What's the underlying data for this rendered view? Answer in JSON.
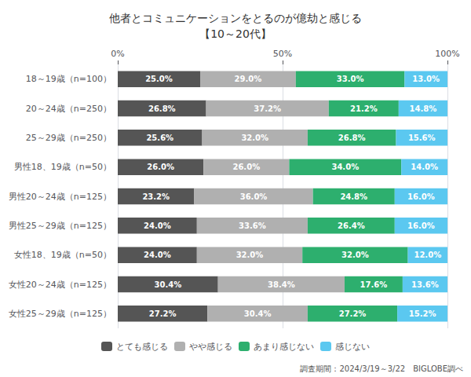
{
  "chart_data": {
    "type": "bar",
    "title": "他者とコミュニケーションをとるのが億劫と感じる\n【10～20代】",
    "orientation": "horizontal",
    "stacked": true,
    "data_labels": true,
    "grid": true,
    "legend": "bottom",
    "categories": [
      "18～19歳（n=100）",
      "20～24歳（n=250）",
      "25～29歳（n=250）",
      "男性18、19歳（n=50）",
      "男性20～24歳（n=125）",
      "男性25～29歳（n=125）",
      "女性18、19歳（n=50）",
      "女性20～24歳（n=125）",
      "女性25～29歳（n=125）"
    ],
    "series": [
      {
        "name": "とても感じる",
        "color": "#555555",
        "values": [
          25.0,
          26.8,
          25.6,
          26.0,
          23.2,
          24.0,
          24.0,
          30.4,
          27.2
        ],
        "value_labels": [
          "25.0%",
          "26.8%",
          "25.6%",
          "26.0%",
          "23.2%",
          "24.0%",
          "24.0%",
          "30.4%",
          "27.2%"
        ]
      },
      {
        "name": "やや感じる",
        "color": "#b0b0b0",
        "values": [
          29.0,
          37.2,
          32.0,
          26.0,
          36.0,
          33.6,
          32.0,
          38.4,
          30.4
        ],
        "value_labels": [
          "29.0%",
          "37.2%",
          "32.0%",
          "26.0%",
          "36.0%",
          "33.6%",
          "32.0%",
          "38.4%",
          "30.4%"
        ]
      },
      {
        "name": "あまり感じない",
        "color": "#2daf6e",
        "values": [
          33.0,
          21.2,
          26.8,
          34.0,
          24.8,
          26.4,
          32.0,
          17.6,
          27.2
        ],
        "value_labels": [
          "33.0%",
          "21.2%",
          "26.8%",
          "34.0%",
          "24.8%",
          "26.4%",
          "32.0%",
          "17.6%",
          "27.2%"
        ]
      },
      {
        "name": "感じない",
        "color": "#5bc8f0",
        "values": [
          13.0,
          14.8,
          15.6,
          14.0,
          16.0,
          16.0,
          12.0,
          13.6,
          15.2
        ],
        "value_labels": [
          "13.0%",
          "14.8%",
          "15.6%",
          "14.0%",
          "16.0%",
          "16.0%",
          "12.0%",
          "13.6%",
          "15.2%"
        ]
      }
    ],
    "xlim": [
      0,
      100
    ],
    "xticks": [
      {
        "value": 0,
        "label": "0%"
      },
      {
        "value": 50,
        "label": "50%"
      },
      {
        "value": 100,
        "label": "100%"
      }
    ],
    "annotations": [
      "調査期間：2024/3/19～3/22　BIGLOBE調べ"
    ]
  }
}
